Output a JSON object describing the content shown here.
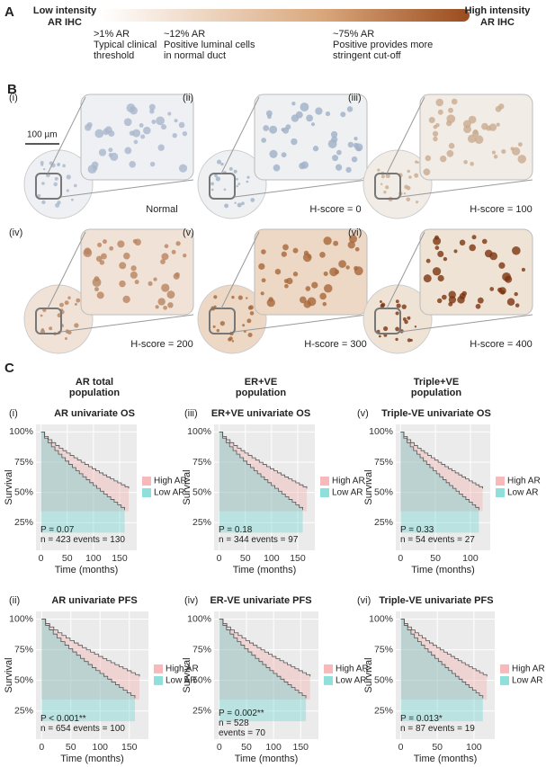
{
  "panel_a": {
    "label": "A",
    "low": [
      "Low intensity",
      "AR IHC"
    ],
    "high": [
      "High intensity",
      "AR IHC"
    ],
    "notes": [
      [
        ">1% AR",
        "Typical clinical",
        "threshold"
      ],
      [
        "~12% AR",
        "Positive luminal cells",
        "in normal duct"
      ],
      [
        "~75% AR",
        "Positive provides more",
        "stringent cut-off"
      ]
    ]
  },
  "panel_b": {
    "label": "B",
    "scale": "100 µm",
    "tiles": [
      {
        "roman": "(i)",
        "caption": "Normal"
      },
      {
        "roman": "(ii)",
        "caption": "H-score = 0"
      },
      {
        "roman": "(iii)",
        "caption": "H-score = 100"
      },
      {
        "roman": "(iv)",
        "caption": "H-score = 200"
      },
      {
        "roman": "(v)",
        "caption": "H-score = 300"
      },
      {
        "roman": "(vi)",
        "caption": "H-score = 400"
      }
    ]
  },
  "panel_c": {
    "label": "C",
    "headers": [
      [
        "AR total",
        "population"
      ],
      [
        "ER+VE",
        "population"
      ],
      [
        "Triple+VE",
        "population"
      ]
    ],
    "y_label": "Survival",
    "x_label": "Time (months)",
    "yticks": [
      "100%",
      "75%",
      "50%",
      "25%"
    ],
    "legend": [
      "High AR",
      "Low AR"
    ],
    "plots": [
      {
        "roman": "(i)",
        "title": "AR univariate OS",
        "xticks": [
          "0",
          "50",
          "100",
          "150"
        ],
        "stats": [
          "P = 0.07",
          "n = 423 events = 130"
        ]
      },
      {
        "roman": "(iii)",
        "title": "ER+VE univariate OS",
        "xticks": [
          "0",
          "50",
          "100",
          "150"
        ],
        "stats": [
          "P = 0.18",
          "n = 344 events = 97"
        ]
      },
      {
        "roman": "(v)",
        "title": "Triple-VE univariate OS",
        "xticks": [
          "0",
          "50",
          "100"
        ],
        "stats": [
          "P = 0.33",
          "n = 54 events = 27"
        ]
      },
      {
        "roman": "(ii)",
        "title": "AR univariate PFS",
        "xticks": [
          "0",
          "50",
          "100",
          "150"
        ],
        "stats": [
          "P < 0.001**",
          "n = 654 events = 100"
        ]
      },
      {
        "roman": "(iv)",
        "title": "ER-VE univariate PFS",
        "xticks": [
          "0",
          "50",
          "100",
          "150"
        ],
        "stats": [
          "P = 0.002**",
          "n = 528",
          "events = 70"
        ]
      },
      {
        "roman": "(vi)",
        "title": "Triple-VE univariate PFS",
        "xticks": [
          "0",
          "50",
          "100"
        ],
        "stats": [
          "P = 0.013*",
          "n = 87 events = 19"
        ]
      }
    ]
  }
}
